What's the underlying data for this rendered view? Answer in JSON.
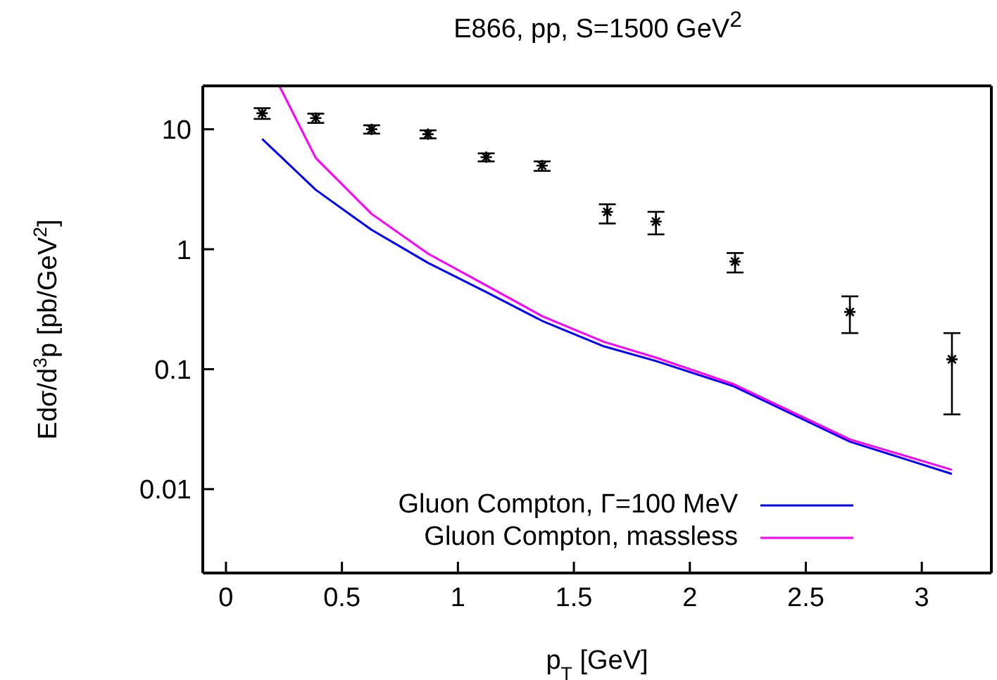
{
  "chart_data": {
    "type": "line",
    "title": "E866, pp, S=1500 GeV$^{2}$",
    "xlabel": "p$_{T}$ [GeV]",
    "ylabel": "Edσ/d$^{3}$p [pb/GeV$^{2}$]",
    "xlim": [
      -0.1,
      3.3
    ],
    "xticks": [
      0,
      0.5,
      1,
      1.5,
      2,
      2.5,
      3
    ],
    "ylim": [
      0.002,
      23
    ],
    "yticks": [
      0.01,
      0.1,
      1,
      10
    ],
    "log": "y",
    "legend": "bottom right",
    "series": [
      {
        "type": "scatter",
        "color": "#000000",
        "marker": "cross",
        "x": [
          0.156,
          0.387,
          0.628,
          0.871,
          1.122,
          1.363,
          1.644,
          1.854,
          2.195,
          2.69,
          3.13
        ],
        "values": [
          13.6,
          12.4,
          10.0,
          9.1,
          5.85,
          4.98,
          2.05,
          1.7,
          0.79,
          0.3,
          0.121
        ],
        "errors": [
          [
            12.2,
            15
          ],
          [
            11.3,
            13.5
          ],
          [
            9.2,
            10.8
          ],
          [
            8.4,
            9.8
          ],
          [
            5.4,
            6.3
          ],
          [
            4.5,
            5.4
          ],
          [
            1.64,
            2.37
          ],
          [
            1.33,
            2.05
          ],
          [
            0.64,
            0.93
          ],
          [
            0.2,
            0.405
          ],
          [
            0.042,
            0.2
          ]
        ]
      },
      {
        "name": "Gluon Compton, Γ=100 MeV",
        "color": "#0000ff",
        "x": [
          0.156,
          0.387,
          0.628,
          0.871,
          1.122,
          1.363,
          1.63,
          1.854,
          2.19,
          2.69,
          3.13
        ],
        "values": [
          8.3,
          3.13,
          1.45,
          0.77,
          0.44,
          0.253,
          0.155,
          0.117,
          0.072,
          0.0249,
          0.0134
        ]
      },
      {
        "name": "Gluon Compton, massless",
        "color": "#ff00ff",
        "x": [
          0.23,
          0.387,
          0.628,
          0.871,
          1.122,
          1.363,
          1.63,
          1.854,
          2.19,
          2.69,
          3.13
        ],
        "values": [
          23,
          5.77,
          1.97,
          0.92,
          0.5,
          0.277,
          0.169,
          0.125,
          0.075,
          0.026,
          0.0145
        ]
      }
    ]
  }
}
